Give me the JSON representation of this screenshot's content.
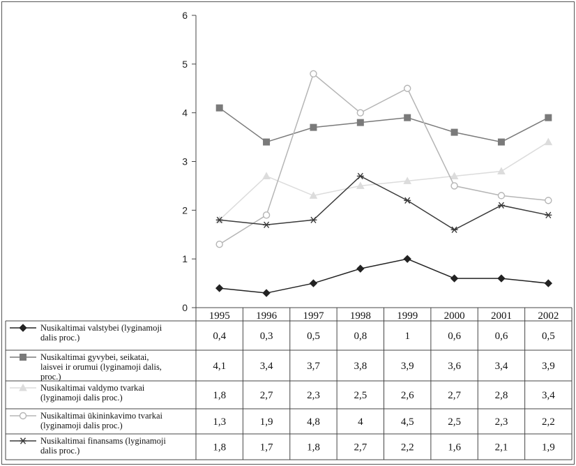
{
  "chart_data": {
    "type": "line",
    "title": "",
    "xlabel": "",
    "ylabel": "",
    "ylim": [
      0,
      6
    ],
    "yticks": [
      0,
      1,
      2,
      3,
      4,
      5,
      6
    ],
    "grid": false,
    "legend_placement": "table-below",
    "categories": [
      "1995",
      "1996",
      "1997",
      "1998",
      "1999",
      "2000",
      "2001",
      "2002"
    ],
    "series": [
      {
        "name_lines": [
          "Nusikaltimai valstybei (lyginamoji",
          "dalis proc.)"
        ],
        "marker": "diamond",
        "color": "#222222",
        "values": [
          0.4,
          0.3,
          0.5,
          0.8,
          1,
          0.6,
          0.6,
          0.5
        ],
        "labels": [
          "0,4",
          "0,3",
          "0,5",
          "0,8",
          "1",
          "0,6",
          "0,6",
          "0,5"
        ]
      },
      {
        "name_lines": [
          "Nusikaltimai gyvybei, seikatai,",
          "laisvei ir orumui (lyginamoji dalis,",
          "proc.)"
        ],
        "marker": "square",
        "color": "#7a7a7a",
        "values": [
          4.1,
          3.4,
          3.7,
          3.8,
          3.9,
          3.6,
          3.4,
          3.9
        ],
        "labels": [
          "4,1",
          "3,4",
          "3,7",
          "3,8",
          "3,9",
          "3,6",
          "3,4",
          "3,9"
        ]
      },
      {
        "name_lines": [
          "Nusikaltimai valdymo tvarkai",
          "(lyginamoji dalis proc.)"
        ],
        "marker": "triangle",
        "color": "#dcdcdc",
        "values": [
          1.8,
          2.7,
          2.3,
          2.5,
          2.6,
          2.7,
          2.8,
          3.4
        ],
        "labels": [
          "1,8",
          "2,7",
          "2,3",
          "2,5",
          "2,6",
          "2,7",
          "2,8",
          "3,4"
        ]
      },
      {
        "name_lines": [
          "Nusikaltimai ūkininkavimo tvarkai",
          "(lyginamoji dalis proc.)"
        ],
        "marker": "circle",
        "color": "#b5b5b5",
        "values": [
          1.3,
          1.9,
          4.8,
          4,
          4.5,
          2.5,
          2.3,
          2.2
        ],
        "labels": [
          "1,3",
          "1,9",
          "4,8",
          "4",
          "4,5",
          "2,5",
          "2,3",
          "2,2"
        ]
      },
      {
        "name_lines": [
          "Nusikaltimai finansams (lyginamoji",
          "dalis proc.)"
        ],
        "marker": "asterisk",
        "color": "#3a3a3a",
        "values": [
          1.8,
          1.7,
          1.8,
          2.7,
          2.2,
          1.6,
          2.1,
          1.9
        ],
        "labels": [
          "1,8",
          "1,7",
          "1,8",
          "2,7",
          "2,2",
          "1,6",
          "2,1",
          "1,9"
        ]
      }
    ]
  }
}
